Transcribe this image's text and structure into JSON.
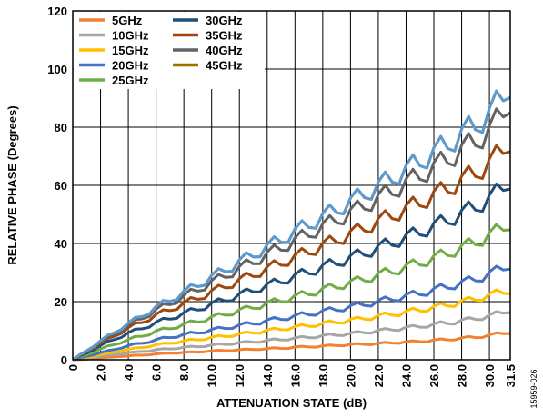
{
  "chart_data": {
    "type": "line",
    "xlabel": "ATTENUATION STATE (dB)",
    "ylabel": "RELATIVE PHASE (Degrees)",
    "xlim": [
      0,
      31.5
    ],
    "ylim": [
      0,
      120
    ],
    "x_ticks": [
      "0",
      "2.0",
      "4.0",
      "6.0",
      "8.0",
      "10.0",
      "12.0",
      "14.0",
      "16.0",
      "18.0",
      "20.0",
      "22.0",
      "24.0",
      "26.0",
      "28.0",
      "30.0",
      "31.5"
    ],
    "y_ticks": [
      "0",
      "20",
      "40",
      "60",
      "80",
      "100",
      "120"
    ],
    "grid": true,
    "legend_position": "top-left",
    "figure_id": "15959-026",
    "x": [
      0,
      0.5,
      1,
      1.5,
      2,
      2.5,
      3,
      3.5,
      4,
      4.5,
      5,
      5.5,
      6,
      6.5,
      7,
      7.5,
      8,
      8.5,
      9,
      9.5,
      10,
      10.5,
      11,
      11.5,
      12,
      12.5,
      13,
      13.5,
      14,
      14.5,
      15,
      15.5,
      16,
      16.5,
      17,
      17.5,
      18,
      18.5,
      19,
      19.5,
      20,
      20.5,
      21,
      21.5,
      22,
      22.5,
      23,
      23.5,
      24,
      24.5,
      25,
      25.5,
      26,
      26.5,
      27,
      27.5,
      28,
      28.5,
      29,
      29.5,
      30,
      30.5,
      31,
      31.5
    ],
    "series": [
      {
        "name": "5GHz",
        "color": "#f08232",
        "values": [
          0,
          0.1,
          0.2,
          0.4,
          0.6,
          0.8,
          1,
          1.2,
          1.3,
          1.5,
          1.6,
          1.8,
          2,
          2.1,
          2.3,
          2.4,
          2.5,
          2.6,
          2.7,
          2.9,
          3,
          3.1,
          3.2,
          3.3,
          3.4,
          3.5,
          3.6,
          3.7,
          3.8,
          3.9,
          4,
          4.1,
          4.3,
          4.4,
          4.5,
          4.6,
          4.7,
          4.8,
          5,
          5.1,
          5.2,
          5.3,
          5.4,
          5.5,
          5.6,
          5.7,
          5.9,
          6,
          6.1,
          6.2,
          6.4,
          6.5,
          6.7,
          6.8,
          7,
          7.2,
          7.4,
          7.6,
          7.8,
          8.1,
          8.4,
          8.8,
          9.2,
          9.6
        ]
      },
      {
        "name": "10GHz",
        "color": "#a6a6a6",
        "values": [
          0,
          0.3,
          0.6,
          0.9,
          1.2,
          1.5,
          1.8,
          2.1,
          2.4,
          2.6,
          2.9,
          3.1,
          3.4,
          3.6,
          3.8,
          4,
          4.2,
          4.4,
          4.6,
          4.8,
          5,
          5.2,
          5.4,
          5.6,
          5.8,
          6,
          6.2,
          6.4,
          6.6,
          6.8,
          7,
          7.2,
          7.4,
          7.6,
          7.8,
          8,
          8.2,
          8.4,
          8.6,
          8.8,
          9,
          9.2,
          9.5,
          9.7,
          10,
          10.2,
          10.5,
          10.7,
          11,
          11.2,
          11.5,
          11.8,
          12.1,
          12.4,
          12.7,
          13,
          13.4,
          13.8,
          14.2,
          14.6,
          15.1,
          15.7,
          16.4,
          17.2
        ]
      },
      {
        "name": "15GHz",
        "color": "#ffc000",
        "values": [
          0,
          0.4,
          0.9,
          1.3,
          1.8,
          2.2,
          2.7,
          3.1,
          3.5,
          3.9,
          4.3,
          4.7,
          5.1,
          5.4,
          5.8,
          6.1,
          6.4,
          6.7,
          7,
          7.3,
          7.6,
          7.9,
          8.2,
          8.5,
          8.8,
          9.1,
          9.4,
          9.7,
          10,
          10.3,
          10.6,
          10.9,
          11.2,
          11.5,
          11.8,
          12.1,
          12.4,
          12.7,
          13,
          13.3,
          13.6,
          13.9,
          14.3,
          14.6,
          15,
          15.3,
          15.7,
          16,
          16.4,
          16.8,
          17.2,
          17.6,
          18,
          18.4,
          18.9,
          19.4,
          19.9,
          20.4,
          21,
          21.6,
          22.2,
          22.8,
          23.4,
          24
        ]
      },
      {
        "name": "20GHz",
        "color": "#4472c4",
        "values": [
          0,
          0.6,
          1.2,
          1.8,
          2.4,
          3,
          3.6,
          4.2,
          4.8,
          5.3,
          5.8,
          6.3,
          6.8,
          7.3,
          7.8,
          8.2,
          8.6,
          9,
          9.4,
          9.8,
          10.2,
          10.6,
          11,
          11.4,
          11.8,
          12.2,
          12.6,
          13,
          13.4,
          13.8,
          14.2,
          14.6,
          15,
          15.4,
          15.8,
          16.2,
          16.6,
          17,
          17.4,
          17.8,
          18.2,
          18.6,
          19.1,
          19.5,
          20,
          20.5,
          21,
          21.4,
          21.9,
          22.4,
          22.9,
          23.4,
          24,
          24.6,
          25.2,
          25.8,
          26.4,
          27.1,
          27.8,
          28.6,
          29.5,
          30.5,
          31.6,
          33
        ]
      },
      {
        "name": "25GHz",
        "color": "#70ad47",
        "values": [
          0,
          0.9,
          1.8,
          2.7,
          3.6,
          4.5,
          5.3,
          6.1,
          6.9,
          7.6,
          8.3,
          9,
          9.7,
          10.3,
          10.9,
          11.5,
          12.1,
          12.7,
          13.3,
          13.9,
          14.5,
          15.1,
          15.7,
          16.3,
          16.9,
          17.5,
          18.1,
          18.7,
          19.3,
          19.9,
          20.5,
          21.1,
          21.7,
          22.3,
          22.9,
          23.5,
          24.1,
          24.7,
          25.3,
          25.9,
          26.5,
          27.1,
          27.8,
          28.4,
          29.1,
          29.8,
          30.5,
          31.2,
          31.9,
          32.6,
          33.4,
          34.2,
          35,
          35.8,
          36.7,
          37.6,
          38.5,
          39.5,
          40.5,
          41.6,
          42.8,
          44.1,
          45.6,
          47.3
        ]
      },
      {
        "name": "30GHz",
        "color": "#1f4e79",
        "values": [
          0,
          1.2,
          2.4,
          3.6,
          4.8,
          6,
          7.1,
          8.1,
          9.1,
          10,
          10.9,
          11.8,
          12.7,
          13.5,
          14.3,
          15.1,
          15.9,
          16.7,
          17.5,
          18.3,
          19.1,
          19.9,
          20.7,
          21.5,
          22.3,
          23.1,
          23.9,
          24.7,
          25.5,
          26.3,
          27.1,
          27.9,
          28.7,
          29.5,
          30.3,
          31.1,
          31.9,
          32.7,
          33.5,
          34.3,
          35.1,
          35.9,
          36.8,
          37.6,
          38.5,
          39.4,
          40.3,
          41.2,
          42.1,
          43,
          44,
          45,
          46,
          47,
          48.1,
          49.2,
          50.3,
          51.5,
          52.7,
          54,
          55.4,
          57.3,
          59.6,
          62.2
        ]
      },
      {
        "name": "35GHz",
        "color": "#9e480e",
        "values": [
          0,
          1.4,
          2.8,
          4.2,
          5.6,
          7,
          8.3,
          9.6,
          10.8,
          12,
          13.1,
          14.2,
          15.3,
          16.3,
          17.3,
          18.3,
          19.3,
          20.3,
          21.3,
          22.3,
          23.3,
          24.3,
          25.3,
          26.3,
          27.3,
          28.3,
          29.3,
          30.3,
          31.3,
          32.3,
          33.3,
          34.3,
          35.3,
          36.3,
          37.3,
          38.3,
          39.3,
          40.3,
          41.3,
          42.3,
          43.3,
          44.3,
          45.4,
          46.4,
          47.5,
          48.6,
          49.7,
          50.8,
          51.9,
          53,
          54.2,
          55.4,
          56.6,
          57.8,
          59.1,
          60.4,
          61.7,
          63.1,
          64.5,
          66,
          67.6,
          69.8,
          72.6,
          75.8
        ]
      },
      {
        "name": "40GHz",
        "color": "#636363",
        "values": [
          0,
          1.5,
          3,
          4.5,
          6,
          7.5,
          9,
          10.4,
          11.8,
          13.1,
          14.4,
          15.7,
          17,
          18.2,
          19.4,
          20.6,
          21.8,
          23,
          24.2,
          25.4,
          26.6,
          27.8,
          29,
          30.2,
          31.4,
          32.6,
          33.8,
          35,
          36.2,
          37.4,
          38.6,
          39.8,
          41,
          42.2,
          43.4,
          44.6,
          45.8,
          47,
          48.2,
          49.4,
          50.6,
          51.8,
          53.1,
          54.3,
          55.6,
          56.9,
          58.2,
          59.5,
          60.8,
          62.1,
          63.5,
          64.9,
          66.3,
          67.7,
          69.2,
          70.7,
          72.2,
          73.8,
          75.4,
          77.1,
          78.8,
          81.8,
          85.5,
          89.9
        ]
      },
      {
        "name": "45GHz",
        "color": "#997300",
        "values": [
          0,
          1.6,
          3.2,
          4.8,
          6.4,
          8,
          9.5,
          11,
          12.4,
          13.8,
          15.2,
          16.6,
          18,
          19.3,
          20.6,
          21.9,
          23.2,
          24.5,
          25.8,
          27.1,
          28.4,
          29.7,
          31,
          32.3,
          33.6,
          34.9,
          36.2,
          37.5,
          38.8,
          40.1,
          41.4,
          42.7,
          44,
          45.3,
          46.6,
          47.9,
          49.2,
          50.5,
          51.8,
          53.1,
          54.4,
          55.7,
          57.1,
          58.4,
          59.8,
          61.2,
          62.6,
          64,
          65.4,
          66.8,
          68.3,
          69.8,
          71.3,
          72.8,
          74.4,
          76,
          77.6,
          79.3,
          81,
          82.8,
          84.6,
          87.6,
          91.2,
          95.5
        ]
      },
      {
        "name": "",
        "color": "#5b9bd5",
        "values": [
          0,
          1.6,
          3.2,
          4.8,
          6.4,
          8,
          9.5,
          11,
          12.4,
          13.8,
          15.2,
          16.6,
          18,
          19.3,
          20.6,
          21.9,
          23.2,
          24.5,
          25.8,
          27.1,
          28.4,
          29.7,
          31,
          32.3,
          33.6,
          34.9,
          36.2,
          37.5,
          38.8,
          40.1,
          41.4,
          42.7,
          44,
          45.3,
          46.6,
          47.9,
          49.2,
          50.5,
          51.8,
          53.1,
          54.4,
          55.7,
          57.1,
          58.4,
          59.8,
          61.2,
          62.6,
          64,
          65.4,
          66.8,
          68.3,
          69.8,
          71.3,
          72.8,
          74.4,
          76,
          77.6,
          79.3,
          81,
          82.8,
          84.6,
          87.6,
          91.2,
          95.5
        ]
      }
    ]
  }
}
